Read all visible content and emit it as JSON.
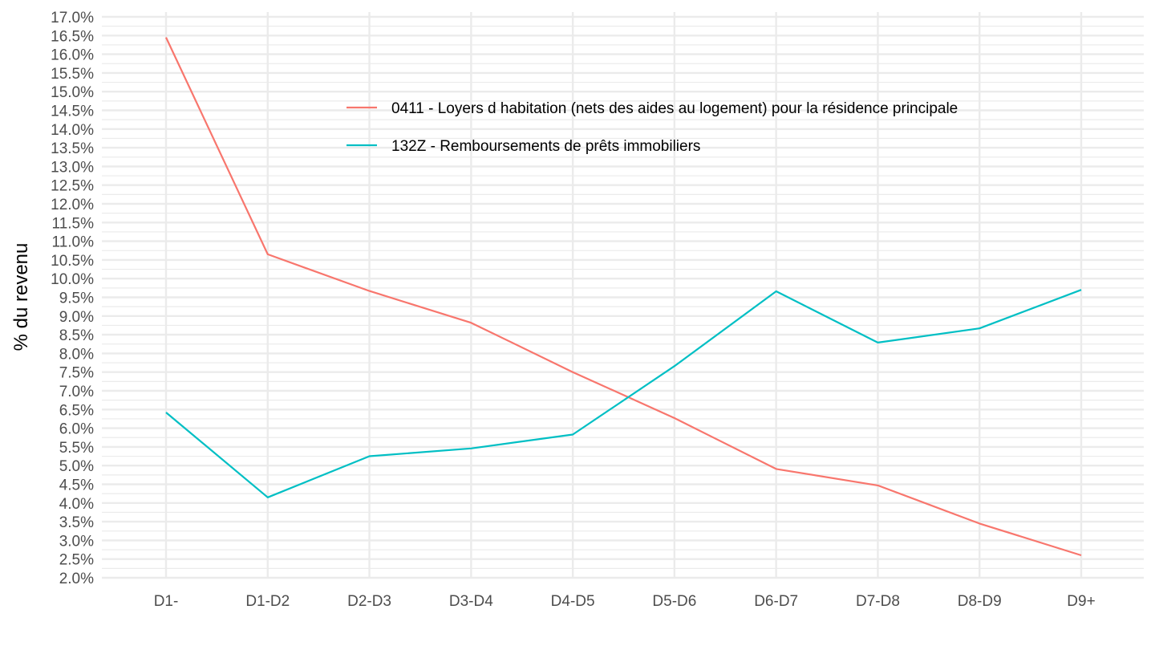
{
  "chart_data": {
    "type": "line",
    "categories": [
      "D1-",
      "D1-D2",
      "D2-D3",
      "D3-D4",
      "D4-D5",
      "D5-D6",
      "D6-D7",
      "D7-D8",
      "D8-D9",
      "D9+"
    ],
    "series": [
      {
        "name": "0411 - Loyers d habitation (nets des aides au logement) pour la résidence principale",
        "color": "#F8766D",
        "values": [
          16.45,
          10.65,
          9.67,
          8.82,
          7.5,
          6.27,
          4.91,
          4.47,
          3.45,
          2.6
        ]
      },
      {
        "name": "132Z - Remboursements de prêts immobiliers",
        "color": "#00BFC4",
        "values": [
          6.42,
          4.15,
          5.25,
          5.46,
          5.83,
          7.66,
          9.66,
          8.29,
          8.67,
          9.7
        ]
      }
    ],
    "xlabel": "",
    "ylabel": "% du revenu",
    "ylim": [
      2.0,
      17.0
    ],
    "yticks": [
      "2.0%",
      "2.5%",
      "3.0%",
      "3.5%",
      "4.0%",
      "4.5%",
      "5.0%",
      "5.5%",
      "6.0%",
      "6.5%",
      "7.0%",
      "7.5%",
      "8.0%",
      "8.5%",
      "9.0%",
      "9.5%",
      "10.0%",
      "10.5%",
      "11.0%",
      "11.5%",
      "12.0%",
      "12.5%",
      "13.0%",
      "13.5%",
      "14.0%",
      "14.5%",
      "15.0%",
      "15.5%",
      "16.0%",
      "16.5%",
      "17.0%"
    ],
    "grid": true,
    "legend_position": "top-right, inside plot"
  }
}
